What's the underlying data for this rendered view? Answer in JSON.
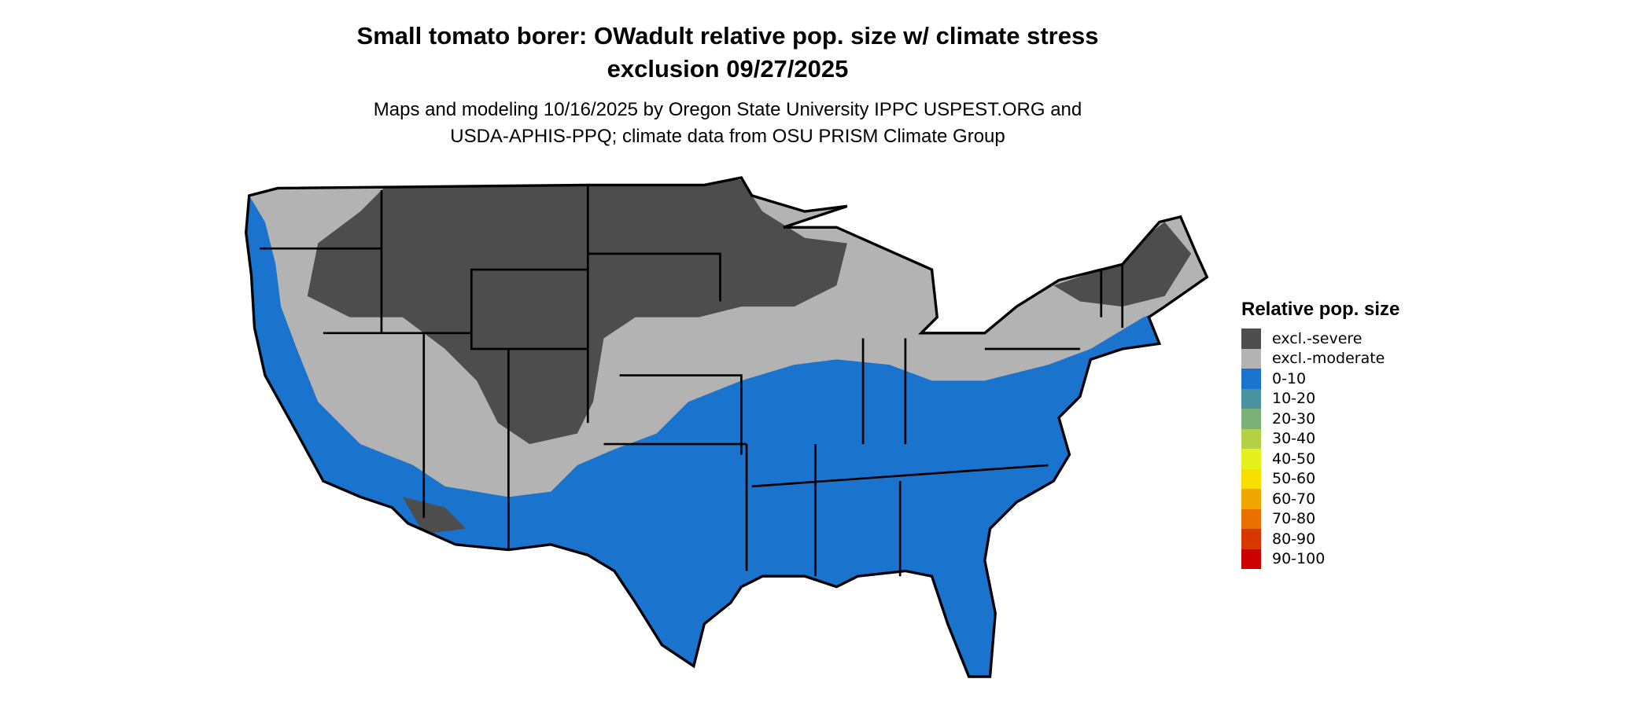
{
  "title": {
    "line1": "Small tomato borer: OWadult relative pop. size w/ climate stress",
    "line2": "exclusion 09/27/2025"
  },
  "subtitle": {
    "line1": "Maps and modeling 10/16/2025 by Oregon State University IPPC USPEST.ORG and",
    "line2": "USDA-APHIS-PPQ; climate data from OSU PRISM Climate Group"
  },
  "map": {
    "region": "Conterminous United States",
    "predominant_categories": [
      "excl.-severe",
      "excl.-moderate",
      "0-10"
    ]
  },
  "legend": {
    "title": "Relative pop. size",
    "items": [
      {
        "label": "excl.-severe",
        "color": "#4d4d4d"
      },
      {
        "label": "excl.-moderate",
        "color": "#b3b3b3"
      },
      {
        "label": "0-10",
        "color": "#1a73cc"
      },
      {
        "label": "10-20",
        "color": "#4a92a0"
      },
      {
        "label": "20-30",
        "color": "#7db076"
      },
      {
        "label": "30-40",
        "color": "#b3d046"
      },
      {
        "label": "40-50",
        "color": "#e6f01a"
      },
      {
        "label": "50-60",
        "color": "#f7e000"
      },
      {
        "label": "60-70",
        "color": "#f0a800"
      },
      {
        "label": "70-80",
        "color": "#e87000"
      },
      {
        "label": "80-90",
        "color": "#d83800"
      },
      {
        "label": "90-100",
        "color": "#cc0000"
      }
    ]
  }
}
